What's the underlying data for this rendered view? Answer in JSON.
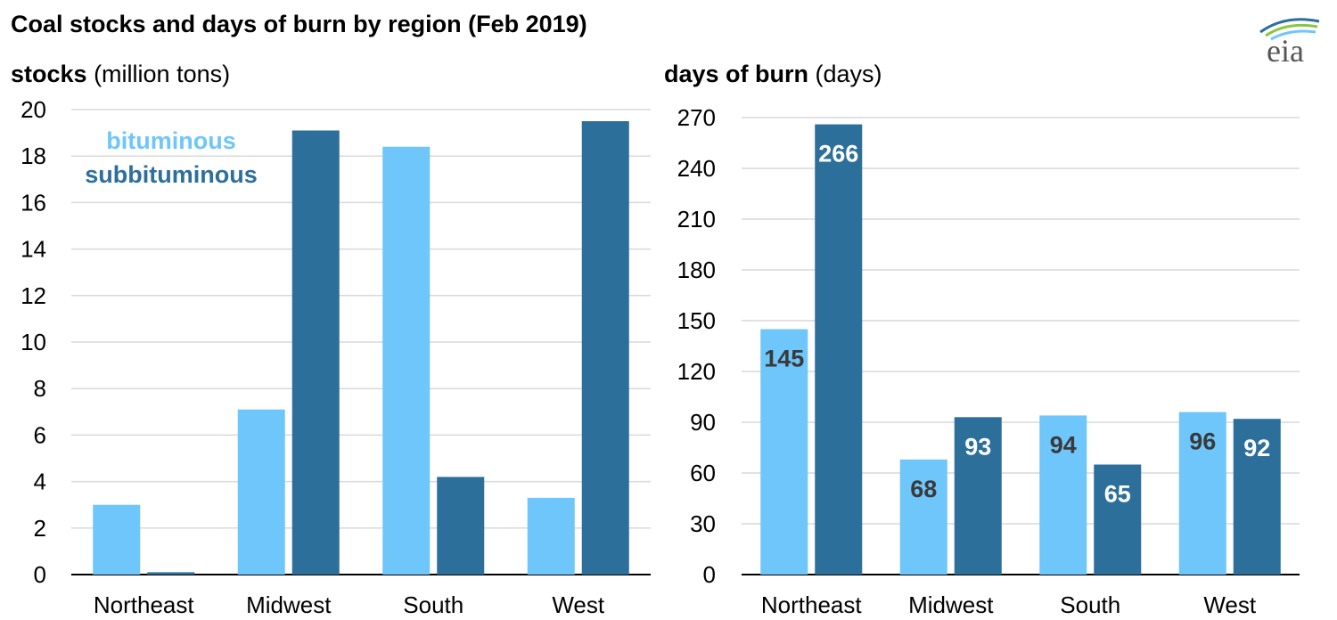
{
  "title": "Coal stocks and days of burn by region (Feb 2019)",
  "logo_text": "eia",
  "colors": {
    "bituminous": "#6ec6fb",
    "subbituminous": "#2d6f9b",
    "grid": "#d9d9d9",
    "label_dark": "#3a3a3a",
    "label_light": "#ffffff"
  },
  "chart_data": [
    {
      "type": "bar",
      "ylabel_bold": "stocks",
      "ylabel_unit": "(million tons)",
      "categories": [
        "Northeast",
        "Midwest",
        "South",
        "West"
      ],
      "ylim": [
        0,
        20
      ],
      "yticks": [
        "0",
        "2",
        "4",
        "6",
        "8",
        "10",
        "12",
        "14",
        "16",
        "18",
        "20"
      ],
      "legend": {
        "placement": "top-left",
        "entries": [
          "bituminous",
          "subbituminous"
        ]
      },
      "series": [
        {
          "name": "bituminous",
          "values": [
            3.0,
            7.1,
            18.4,
            3.3
          ]
        },
        {
          "name": "subbituminous",
          "values": [
            0.1,
            19.1,
            4.2,
            19.5
          ]
        }
      ]
    },
    {
      "type": "bar",
      "ylabel_bold": "days of burn",
      "ylabel_unit": "(days)",
      "categories": [
        "Northeast",
        "Midwest",
        "South",
        "West"
      ],
      "ylim": [
        0,
        270
      ],
      "yticks": [
        "0",
        "30",
        "60",
        "90",
        "120",
        "150",
        "180",
        "210",
        "240",
        "270"
      ],
      "series": [
        {
          "name": "bituminous",
          "values": [
            145,
            68,
            94,
            96
          ],
          "labels": [
            "145",
            "68",
            "94",
            "96"
          ]
        },
        {
          "name": "subbituminous",
          "values": [
            266,
            93,
            65,
            92
          ],
          "labels": [
            "266",
            "93",
            "65",
            "92"
          ]
        }
      ]
    }
  ]
}
